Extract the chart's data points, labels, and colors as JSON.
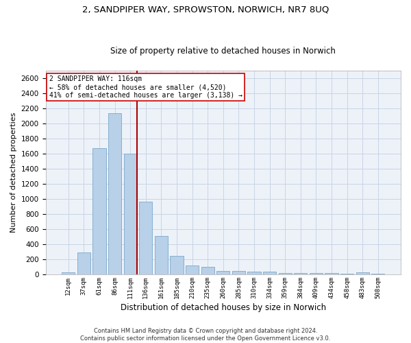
{
  "title_line1": "2, SANDPIPER WAY, SPROWSTON, NORWICH, NR7 8UQ",
  "title_line2": "Size of property relative to detached houses in Norwich",
  "xlabel": "Distribution of detached houses by size in Norwich",
  "ylabel": "Number of detached properties",
  "categories": [
    "12sqm",
    "37sqm",
    "61sqm",
    "86sqm",
    "111sqm",
    "136sqm",
    "161sqm",
    "185sqm",
    "210sqm",
    "235sqm",
    "260sqm",
    "285sqm",
    "310sqm",
    "334sqm",
    "359sqm",
    "384sqm",
    "409sqm",
    "434sqm",
    "458sqm",
    "483sqm",
    "508sqm"
  ],
  "values": [
    25,
    295,
    1670,
    2140,
    1600,
    960,
    505,
    250,
    120,
    100,
    50,
    50,
    35,
    35,
    20,
    20,
    20,
    20,
    5,
    25,
    5
  ],
  "bar_color": "#b8d0e8",
  "bar_edge_color": "#7aa8cc",
  "grid_color": "#c8d4e4",
  "background_color": "#edf2f9",
  "annotation_line1": "2 SANDPIPER WAY: 116sqm",
  "annotation_line2": "← 58% of detached houses are smaller (4,520)",
  "annotation_line3": "41% of semi-detached houses are larger (3,138) →",
  "vline_color": "#aa0000",
  "ylim": [
    0,
    2700
  ],
  "yticks": [
    0,
    200,
    400,
    600,
    800,
    1000,
    1200,
    1400,
    1600,
    1800,
    2000,
    2200,
    2400,
    2600
  ],
  "footer_line1": "Contains HM Land Registry data © Crown copyright and database right 2024.",
  "footer_line2": "Contains public sector information licensed under the Open Government Licence v3.0."
}
